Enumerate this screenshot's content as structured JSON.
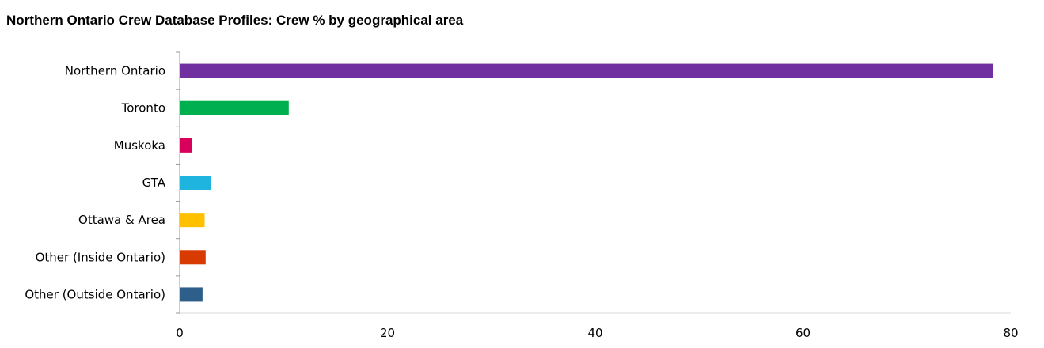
{
  "chart_data": {
    "type": "bar",
    "orientation": "horizontal",
    "title": "Northern Ontario Crew Database Profiles: Crew % by geographical area",
    "categories": [
      "Northern Ontario",
      "Toronto",
      "Muskoka",
      "GTA",
      "Ottawa & Area",
      "Other (Inside Ontario)",
      "Other (Outside Ontario)"
    ],
    "values": [
      78.3,
      10.5,
      1.2,
      3.0,
      2.4,
      2.5,
      2.2
    ],
    "colors": [
      "#7030A0",
      "#00B050",
      "#D9005B",
      "#1FB4E0",
      "#FFC000",
      "#D83B01",
      "#2E5F8A"
    ],
    "xlim": [
      0,
      80
    ],
    "xticks": [
      "0",
      "20",
      "40",
      "60",
      "80"
    ],
    "grid": false,
    "legend": "none"
  }
}
